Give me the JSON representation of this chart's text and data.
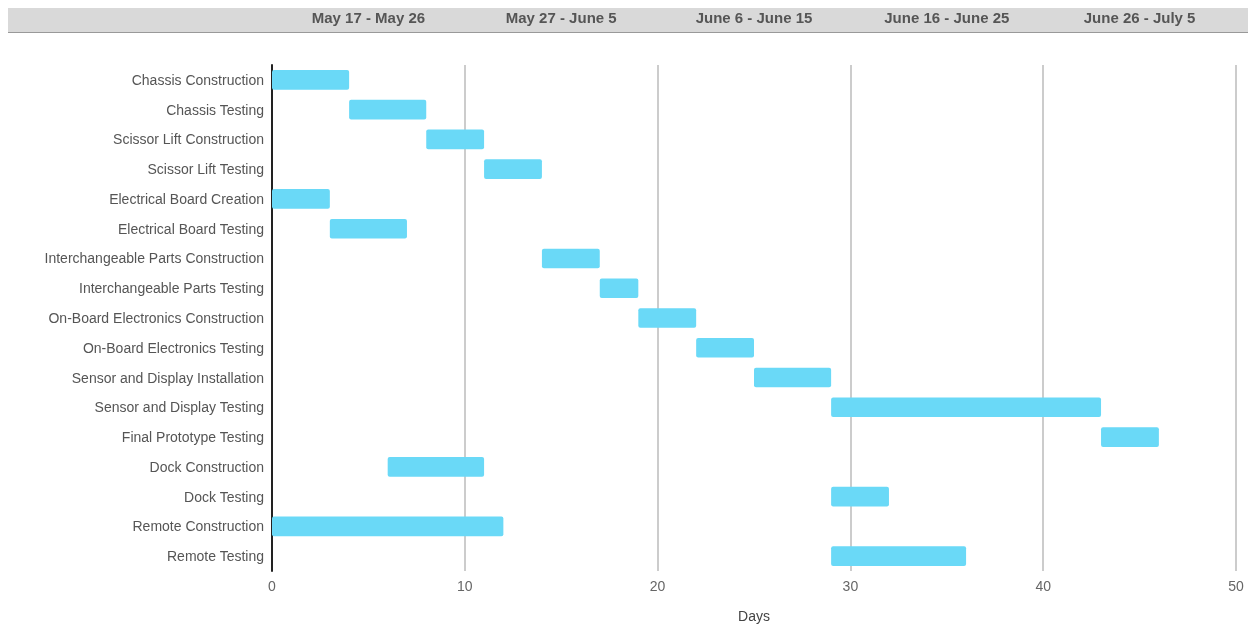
{
  "chart_data": {
    "type": "bar",
    "orientation": "horizontal",
    "xlabel": "Days",
    "categories": [
      "Chassis Construction",
      "Chassis Testing",
      "Scissor Lift Construction",
      "Scissor Lift Testing",
      "Electrical Board Creation",
      "Electrical Board Testing",
      "Interchangeable Parts Construction",
      "Interchangeable Parts Testing",
      "On-Board Electronics Construction",
      "On-Board Electronics Testing",
      "Sensor and Display Installation",
      "Sensor and Display Testing",
      "Final Prototype Testing",
      "Dock Construction",
      "Dock Testing",
      "Remote Construction",
      "Remote Testing"
    ],
    "base": [
      0,
      4,
      8,
      11,
      0,
      3,
      14,
      17,
      19,
      22,
      25,
      29,
      43,
      6,
      29,
      0,
      29
    ],
    "values": [
      4,
      4,
      3,
      3,
      3,
      4,
      3,
      2,
      3,
      3,
      4,
      14,
      3,
      5,
      3,
      12,
      7
    ],
    "color": "#6ad9f7",
    "xlim": [
      0,
      50
    ],
    "xticks": [
      0,
      10,
      20,
      30,
      40,
      50
    ],
    "annotations": [
      "May 17 - May 26",
      "May 27 - June 5",
      "June 6 - June 15",
      "June 16 - June 25",
      "June 26 - July 5"
    ],
    "grid": "x"
  }
}
